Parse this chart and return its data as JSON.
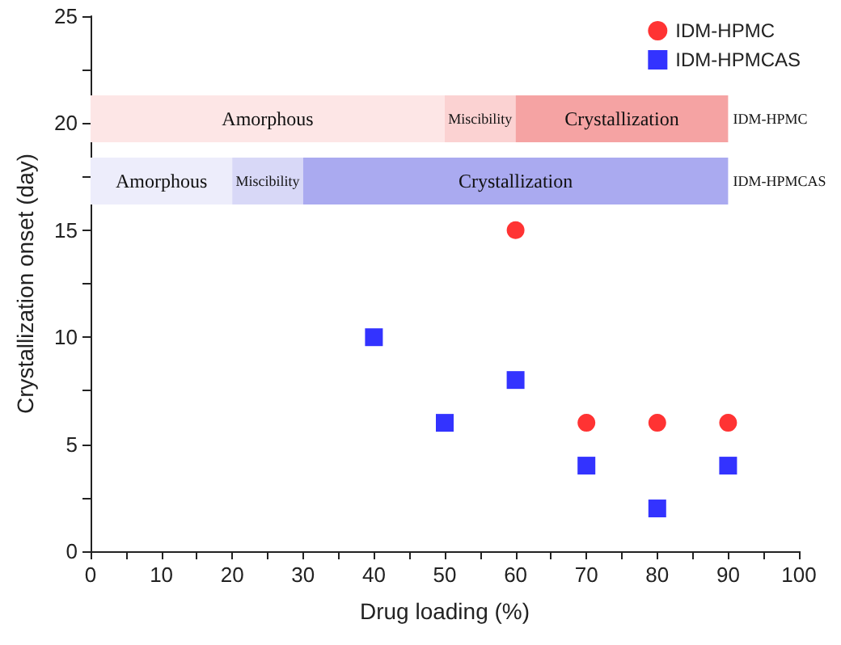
{
  "chart_data": {
    "type": "scatter",
    "xlabel": "Drug loading (%)",
    "ylabel": "Crystallization onset (day)",
    "series": [
      {
        "name": "IDM-HPMC",
        "color": "#ff0000",
        "marker": "circle",
        "x": [
          60,
          70,
          80,
          90
        ],
        "values": [
          15,
          6,
          6,
          6
        ]
      },
      {
        "name": "IDM-HPMCAS",
        "color": "#0000ff",
        "marker": "square",
        "x": [
          40,
          50,
          60,
          70,
          80,
          90
        ],
        "values": [
          10,
          6,
          8,
          4,
          2,
          4
        ]
      }
    ],
    "bands": [
      {
        "axis": "x",
        "from": 0,
        "to": 50,
        "label": "Amorphous",
        "color": "#fde6e6"
      },
      {
        "axis": "x",
        "from": 50,
        "to": 60,
        "label": "Miscibility",
        "color": "#fbd2d2"
      },
      {
        "axis": "x",
        "from": 60,
        "to": 90,
        "label": "Crystallization",
        "color": "#f5a3a3"
      },
      {
        "axis": "x",
        "from": 0,
        "to": 20,
        "label": "Amorphous",
        "color": "#ededfb"
      },
      {
        "axis": "x",
        "from": 20,
        "to": 30,
        "label": "Miscibility",
        "color": "#d8d8f7"
      },
      {
        "axis": "x",
        "from": 30,
        "to": 90,
        "label": "Crystallization",
        "color": "#aaaaf0"
      }
    ],
    "annotations": [
      {
        "text": "IDM-HPMC",
        "x": 90,
        "y": 20.2
      },
      {
        "text": "IDM-HPMCAS",
        "x": 90,
        "y": 17.3
      }
    ],
    "xlim": [
      0,
      100
    ],
    "xticks": [
      0,
      10,
      20,
      30,
      40,
      50,
      60,
      70,
      80,
      90,
      100
    ],
    "ylim": [
      0,
      25
    ],
    "yticks": [
      0,
      5,
      10,
      15,
      20,
      25
    ],
    "grid": false,
    "legend": "top right"
  }
}
